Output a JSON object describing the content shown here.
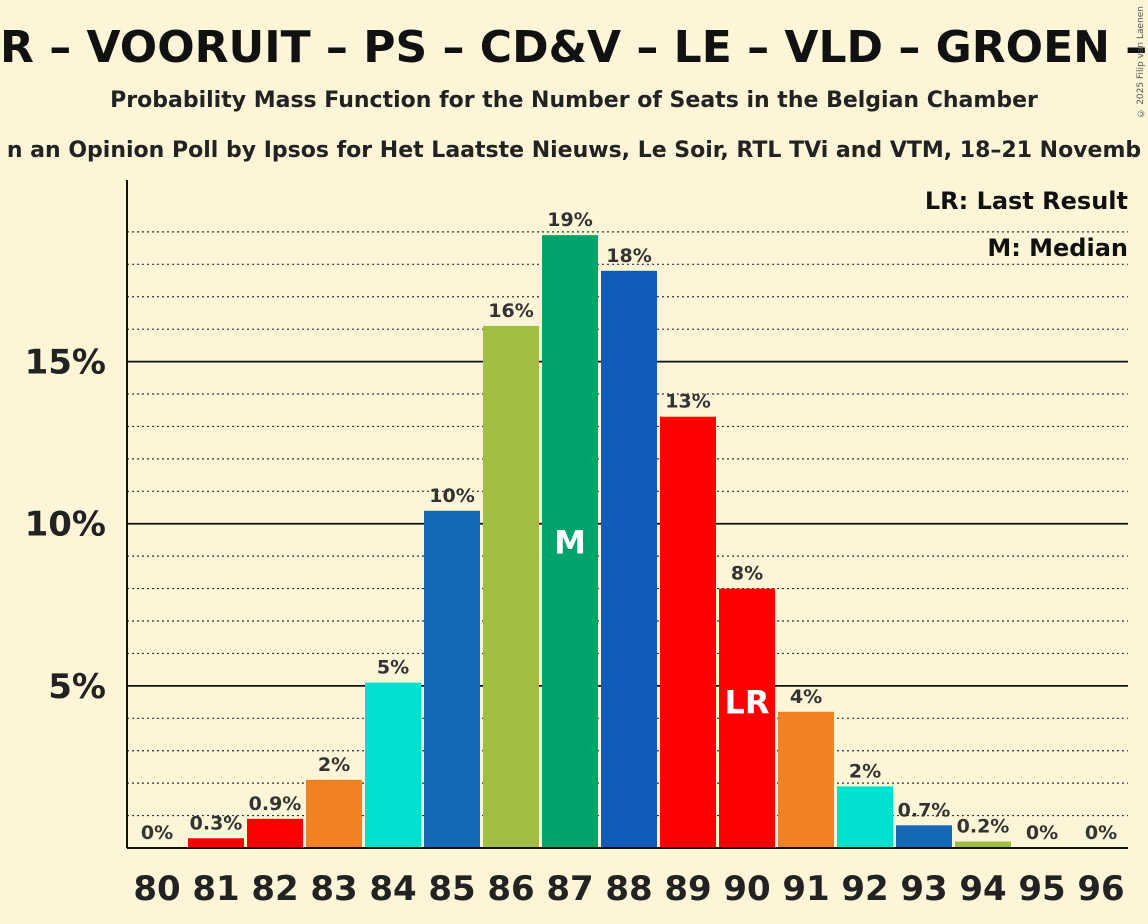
{
  "title": "R – VOORUIT – PS – CD&V – LE – VLD – GROEN – ECO",
  "subtitle": "Probability Mass Function for the Number of Seats in the Belgian Chamber",
  "subsubtitle": "n an Opinion Poll by Ipsos for Het Laatste Nieuws, Le Soir, RTL TVi and VTM, 18–21 Novemb",
  "copyright": "© 2025 Filip van Laenen",
  "legend": {
    "last_result": "LR: Last Result",
    "median": "M: Median"
  },
  "chart_data": {
    "type": "bar",
    "categories": [
      "80",
      "81",
      "82",
      "83",
      "84",
      "85",
      "86",
      "87",
      "88",
      "89",
      "90",
      "91",
      "92",
      "93",
      "94",
      "95",
      "96"
    ],
    "values": [
      0,
      0.3,
      0.9,
      2.1,
      5.1,
      10.4,
      16.1,
      18.9,
      17.8,
      13.3,
      8.0,
      4.2,
      1.9,
      0.7,
      0.2,
      0,
      0
    ],
    "labels": [
      "0%",
      "0.3%",
      "0.9%",
      "2%",
      "5%",
      "10%",
      "16%",
      "19%",
      "18%",
      "13%",
      "8%",
      "4%",
      "2%",
      "0.7%",
      "0.2%",
      "0%",
      "0%"
    ],
    "colors": [
      "#ff0000",
      "#ff0000",
      "#ff0000",
      "#f08223",
      "#00e0d0",
      "#1568b5",
      "#a0be41",
      "#00a36c",
      "#115cba",
      "#ff0000",
      "#ff0000",
      "#f08223",
      "#00e0d0",
      "#1568b5",
      "#a0be41",
      "#00a36c",
      "#115cba"
    ],
    "y_ticks": [
      5,
      10,
      15
    ],
    "y_tick_labels": [
      "5%",
      "10%",
      "15%"
    ],
    "ylim": [
      0,
      20.6
    ],
    "median_category": "87",
    "median_label": "M",
    "last_result_category": "90",
    "last_result_label": "LR",
    "grid": true,
    "legend_position": "top-right"
  }
}
